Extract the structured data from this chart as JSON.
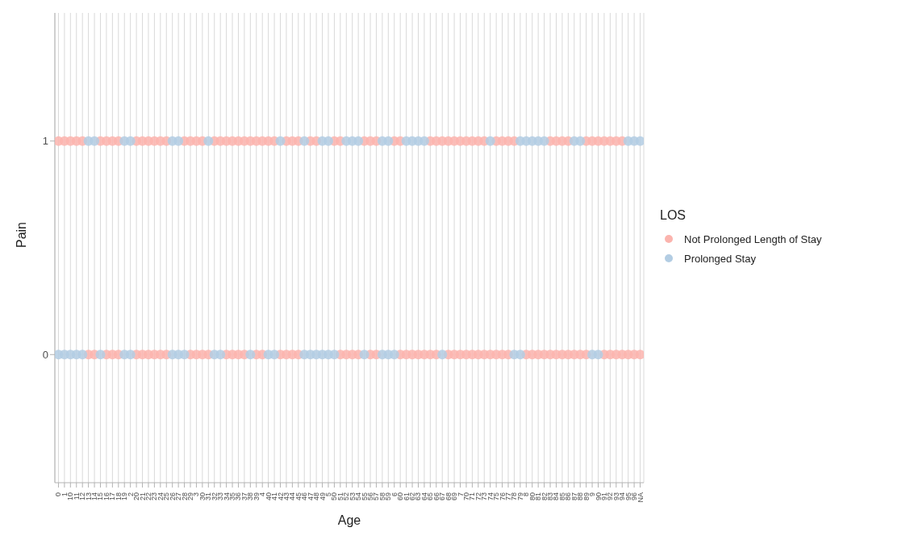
{
  "chart_data": {
    "type": "scatter",
    "xlabel": "Age",
    "ylabel": "Pain",
    "legend_title": "LOS",
    "legend": "right",
    "grid": "x",
    "marker": "circle",
    "categories": [
      "0",
      "1",
      "10",
      "11",
      "12",
      "13",
      "14",
      "15",
      "16",
      "17",
      "18",
      "19",
      "2",
      "20",
      "21",
      "22",
      "23",
      "24",
      "25",
      "26",
      "27",
      "28",
      "29",
      "3",
      "30",
      "31",
      "32",
      "33",
      "34",
      "35",
      "36",
      "37",
      "38",
      "39",
      "4",
      "40",
      "41",
      "42",
      "43",
      "44",
      "45",
      "46",
      "47",
      "48",
      "49",
      "5",
      "50",
      "51",
      "52",
      "53",
      "54",
      "55",
      "56",
      "57",
      "58",
      "59",
      "6",
      "60",
      "61",
      "62",
      "63",
      "64",
      "65",
      "66",
      "67",
      "68",
      "69",
      "7",
      "70",
      "71",
      "72",
      "73",
      "74",
      "75",
      "76",
      "77",
      "78",
      "79",
      "8",
      "80",
      "81",
      "82",
      "83",
      "84",
      "85",
      "86",
      "87",
      "88",
      "89",
      "9",
      "90",
      "91",
      "92",
      "93",
      "94",
      "95",
      "96",
      "NA"
    ],
    "ylim": [
      -0.6,
      1.6
    ],
    "yticks": [
      0,
      1
    ],
    "series": [
      {
        "name": "Not Prolonged Length of Stay",
        "color": "#fbb4ae",
        "x": [
          "0",
          "1",
          "10",
          "11",
          "12",
          "15",
          "16",
          "17",
          "18",
          "20",
          "21",
          "22",
          "23",
          "24",
          "25",
          "28",
          "29",
          "3",
          "30",
          "32",
          "33",
          "34",
          "35",
          "36",
          "37",
          "38",
          "39",
          "4",
          "40",
          "41",
          "43",
          "44",
          "45",
          "47",
          "48",
          "50",
          "51",
          "55",
          "56",
          "57",
          "6",
          "60",
          "65",
          "66",
          "67",
          "68",
          "69",
          "7",
          "70",
          "71",
          "72",
          "73",
          "75",
          "76",
          "77",
          "78",
          "83",
          "84",
          "85",
          "86",
          "89",
          "9",
          "90",
          "91",
          "92",
          "93",
          "94",
          "13",
          "14",
          "16",
          "17",
          "18",
          "20",
          "21",
          "22",
          "23",
          "24",
          "25",
          "29",
          "3",
          "30",
          "31",
          "34",
          "35",
          "36",
          "37",
          "39",
          "4",
          "42",
          "43",
          "44",
          "45",
          "51",
          "52",
          "53",
          "54",
          "56",
          "57",
          "60",
          "61",
          "62",
          "63",
          "64",
          "65",
          "66",
          "68",
          "69",
          "7",
          "70",
          "71",
          "72",
          "73",
          "74",
          "75",
          "76",
          "77",
          "8",
          "80",
          "81",
          "82",
          "83",
          "84",
          "85",
          "86",
          "87",
          "88",
          "89",
          "91",
          "92",
          "93",
          "94",
          "95",
          "96",
          "NA"
        ],
        "values": [
          1,
          1,
          1,
          1,
          1,
          1,
          1,
          1,
          1,
          1,
          1,
          1,
          1,
          1,
          1,
          1,
          1,
          1,
          1,
          1,
          1,
          1,
          1,
          1,
          1,
          1,
          1,
          1,
          1,
          1,
          1,
          1,
          1,
          1,
          1,
          1,
          1,
          1,
          1,
          1,
          1,
          1,
          1,
          1,
          1,
          1,
          1,
          1,
          1,
          1,
          1,
          1,
          1,
          1,
          1,
          1,
          1,
          1,
          1,
          1,
          1,
          1,
          1,
          1,
          1,
          1,
          1,
          0,
          0,
          0,
          0,
          0,
          0,
          0,
          0,
          0,
          0,
          0,
          0,
          0,
          0,
          0,
          0,
          0,
          0,
          0,
          0,
          0,
          0,
          0,
          0,
          0,
          0,
          0,
          0,
          0,
          0,
          0,
          0,
          0,
          0,
          0,
          0,
          0,
          0,
          0,
          0,
          0,
          0,
          0,
          0,
          0,
          0,
          0,
          0,
          0,
          0,
          0,
          0,
          0,
          0,
          0,
          0,
          0,
          0,
          0,
          0,
          0,
          0,
          0,
          0,
          0,
          0,
          0
        ]
      },
      {
        "name": "Prolonged Stay",
        "color": "#b3cde3",
        "x": [
          "13",
          "14",
          "19",
          "2",
          "26",
          "27",
          "31",
          "42",
          "46",
          "49",
          "5",
          "52",
          "53",
          "54",
          "58",
          "59",
          "61",
          "62",
          "63",
          "64",
          "74",
          "79",
          "8",
          "80",
          "81",
          "82",
          "87",
          "88",
          "95",
          "96",
          "NA",
          "0",
          "1",
          "10",
          "11",
          "12",
          "15",
          "19",
          "2",
          "26",
          "27",
          "28",
          "32",
          "33",
          "38",
          "40",
          "41",
          "46",
          "47",
          "48",
          "49",
          "5",
          "50",
          "55",
          "58",
          "59",
          "6",
          "67",
          "78",
          "79",
          "9",
          "90"
        ],
        "values": [
          1,
          1,
          1,
          1,
          1,
          1,
          1,
          1,
          1,
          1,
          1,
          1,
          1,
          1,
          1,
          1,
          1,
          1,
          1,
          1,
          1,
          1,
          1,
          1,
          1,
          1,
          1,
          1,
          1,
          1,
          1,
          0,
          0,
          0,
          0,
          0,
          0,
          0,
          0,
          0,
          0,
          0,
          0,
          0,
          0,
          0,
          0,
          0,
          0,
          0,
          0,
          0,
          0,
          0,
          0,
          0,
          0,
          0,
          0,
          0,
          0,
          0
        ]
      }
    ]
  }
}
